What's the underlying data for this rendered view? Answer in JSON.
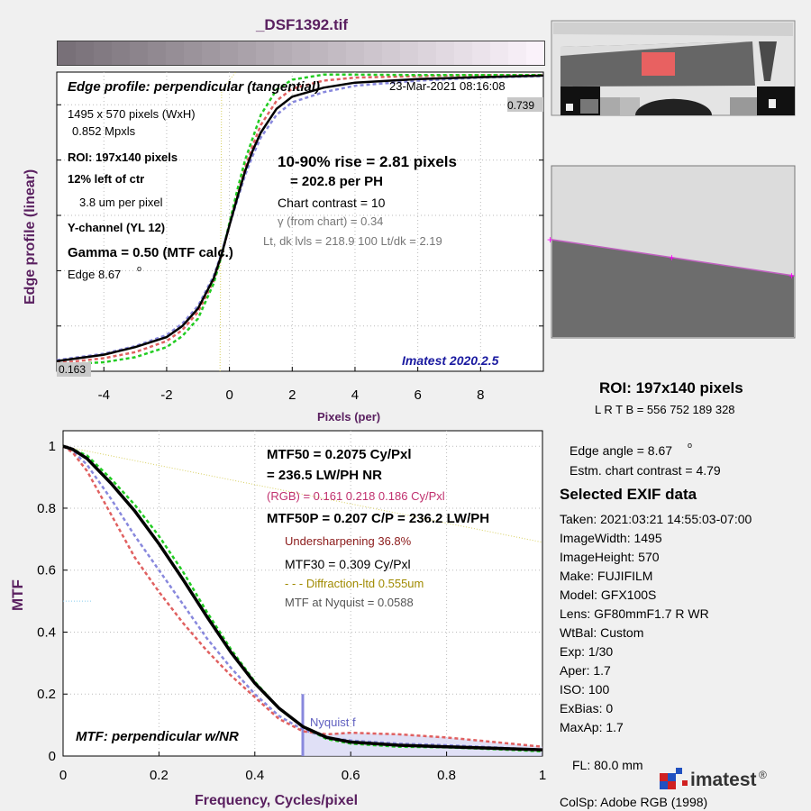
{
  "title": "_DSF1392.tif",
  "edge_panel": {
    "heading": "Edge profile: perpendicular (tangential)",
    "timestamp": "23-Mar-2021 08:16:08",
    "size": "1495 x 570 pixels (WxH)",
    "mpxls": "0.852 Mpxls",
    "roi": "ROI:  197x140 pixels",
    "position": "12% left of ctr",
    "pitch": "3.8 um per pixel",
    "channel": "Y-channel  (YL 12)",
    "gamma": "Gamma = 0.50 (MTF calc.)",
    "edge_label": "Edge   8.67",
    "edge_deg": "o",
    "rise": "10-90% rise = 2.81 pixels",
    "per_ph": "=  202.8 per PH",
    "contrast": "Chart contrast = 10",
    "gamma_chart": "γ (from chart) =  0.34",
    "levels": "Lt, dk lvls = 218.9  100  Lt/dk = 2.19",
    "version": "Imatest 2020.2.5",
    "top_value": "0.739",
    "bottom_value": "0.163"
  },
  "mtf_panel": {
    "mtf50": "MTF50 = 0.2075 Cy/Pxl",
    "mtf50_lw": "= 236.5 LW/PH  NR",
    "rgb": "(RGB) = 0.161  0.218  0.186 Cy/Pxl",
    "mtf50p": "MTF50P = 0.207 C/P = 236.2 LW/PH",
    "undersharp": "Undersharpening 36.8%",
    "mtf30": "MTF30 = 0.309 Cy/Pxl",
    "diffraction": "- - - Diffraction-ltd  0.555um",
    "nyquist_mtf": "MTF at Nyquist = 0.0588",
    "nyquist_label": "Nyquist f",
    "caption": "MTF: perpendicular w/NR"
  },
  "side": {
    "roi": "ROI:  197x140 pixels",
    "lrtb": "L R  T B = 556 752  189 328",
    "edge_angle": "Edge angle = 8.67",
    "edge_angle_deg": "o",
    "chart_contrast": "Estm. chart contrast = 4.79",
    "exif_title": "Selected EXIF data",
    "exif": [
      "Taken: 2021:03:21 14:55:03-07:00",
      "ImageWidth:  1495",
      "ImageHeight:  570",
      "Make:  FUJIFILM",
      "Model:  GFX100S",
      "Lens:   GF80mmF1.7 R WR",
      "WtBal:  Custom",
      "Exp:    1/30",
      "Aper:   1.7",
      "ISO:    100",
      "ExBias:  0",
      "MaxAp:  1.7"
    ],
    "fl": "FL:     80.0 mm",
    "colsp": "ColSp:  Adobe RGB (1998)",
    "logo_text": "imatest",
    "logo_reg": "®"
  },
  "chart_data": [
    {
      "type": "line",
      "xlabel": "Pixels (per)",
      "ylabel": "Edge profile (linear)",
      "xlim": [
        -5.5,
        10
      ],
      "xticks": [
        -4,
        -2,
        0,
        2,
        4,
        6,
        8
      ],
      "grid": true,
      "series": [
        {
          "x": [
            -5.5,
            -4,
            -3,
            -2,
            -1.5,
            -1,
            -0.5,
            -0.25,
            0,
            0.25,
            0.5,
            0.75,
            1,
            1.5,
            2,
            3,
            4,
            6,
            8,
            10
          ],
          "y": [
            0.166,
            0.176,
            0.188,
            0.21,
            0.232,
            0.268,
            0.33,
            0.38,
            0.44,
            0.5,
            0.555,
            0.6,
            0.64,
            0.688,
            0.712,
            0.728,
            0.734,
            0.737,
            0.739,
            0.739
          ]
        },
        {
          "x": [
            -5.5,
            -4,
            -3,
            -2,
            -1.5,
            -1,
            -0.5,
            -0.25,
            0,
            0.25,
            0.5,
            0.75,
            1,
            1.5,
            2,
            3,
            4,
            6,
            8,
            10
          ],
          "y": [
            0.163,
            0.168,
            0.178,
            0.198,
            0.22,
            0.255,
            0.325,
            0.38,
            0.445,
            0.51,
            0.57,
            0.615,
            0.66,
            0.71,
            0.73,
            0.74,
            0.74,
            0.739,
            0.739,
            0.739
          ]
        },
        {
          "x": [
            -5.5,
            -4,
            -3,
            -2,
            -1.5,
            -1,
            -0.5,
            -0.25,
            0,
            0.25,
            0.5,
            0.75,
            1,
            1.5,
            2,
            3,
            4,
            6,
            8,
            10
          ],
          "y": [
            0.172,
            0.185,
            0.2,
            0.222,
            0.245,
            0.28,
            0.34,
            0.385,
            0.44,
            0.49,
            0.54,
            0.58,
            0.615,
            0.66,
            0.685,
            0.705,
            0.718,
            0.728,
            0.734,
            0.737
          ]
        },
        {
          "x": [
            -5.5,
            -4,
            -3,
            -2,
            -1.5,
            -1,
            -0.5,
            -0.25,
            0,
            0.25,
            0.5,
            0.75,
            1,
            1.5,
            2,
            3,
            4,
            6,
            8,
            10
          ],
          "y": [
            0.17,
            0.183,
            0.198,
            0.218,
            0.24,
            0.275,
            0.335,
            0.382,
            0.44,
            0.495,
            0.548,
            0.59,
            0.625,
            0.672,
            0.696,
            0.714,
            0.724,
            0.731,
            0.735,
            0.738
          ]
        }
      ]
    },
    {
      "type": "line",
      "xlabel": "Frequency, Cycles/pixel",
      "ylabel": "MTF",
      "xlim": [
        0,
        1
      ],
      "ylim": [
        0,
        1.05
      ],
      "xticks": [
        0,
        0.2,
        0.4,
        0.6,
        0.8,
        1
      ],
      "yticks": [
        0,
        0.2,
        0.4,
        0.6,
        0.8,
        1
      ],
      "grid": true,
      "series": [
        {
          "x": [
            0,
            0.02,
            0.05,
            0.1,
            0.15,
            0.2,
            0.25,
            0.3,
            0.35,
            0.4,
            0.45,
            0.5,
            0.55,
            0.6,
            0.7,
            0.8,
            0.9,
            1.0
          ],
          "y": [
            1.0,
            0.99,
            0.96,
            0.88,
            0.79,
            0.685,
            0.57,
            0.45,
            0.335,
            0.235,
            0.155,
            0.095,
            0.06,
            0.045,
            0.035,
            0.03,
            0.025,
            0.02
          ]
        },
        {
          "x": [
            0,
            0.02,
            0.05,
            0.1,
            0.15,
            0.2,
            0.25,
            0.3,
            0.35,
            0.4,
            0.45,
            0.5,
            0.55,
            0.6,
            0.7,
            0.8,
            0.9,
            1.0
          ],
          "y": [
            1.0,
            0.99,
            0.97,
            0.895,
            0.81,
            0.71,
            0.595,
            0.465,
            0.345,
            0.24,
            0.155,
            0.095,
            0.055,
            0.04,
            0.03,
            0.028,
            0.022,
            0.015
          ]
        },
        {
          "x": [
            0,
            0.02,
            0.05,
            0.1,
            0.15,
            0.2,
            0.25,
            0.3,
            0.35,
            0.4,
            0.45,
            0.5,
            0.55,
            0.6,
            0.7,
            0.8,
            0.9,
            1.0
          ],
          "y": [
            1.0,
            0.98,
            0.92,
            0.78,
            0.64,
            0.53,
            0.43,
            0.34,
            0.26,
            0.19,
            0.12,
            0.08,
            0.07,
            0.075,
            0.07,
            0.06,
            0.045,
            0.03
          ]
        },
        {
          "x": [
            0,
            0.02,
            0.05,
            0.1,
            0.15,
            0.2,
            0.25,
            0.3,
            0.35,
            0.4,
            0.45,
            0.5,
            0.55,
            0.6,
            0.7,
            0.8,
            0.9,
            1.0
          ],
          "y": [
            1.0,
            0.985,
            0.94,
            0.83,
            0.71,
            0.6,
            0.49,
            0.38,
            0.285,
            0.2,
            0.13,
            0.085,
            0.06,
            0.05,
            0.04,
            0.035,
            0.028,
            0.02
          ]
        },
        {
          "x": [
            0,
            1.0
          ],
          "y": [
            1.0,
            0.69
          ]
        }
      ]
    }
  ],
  "colors": {
    "black": "#000000",
    "green": "#22cc22",
    "red": "#e06060",
    "blue": "#8888dd",
    "magenta": "#d060a0",
    "diffraction": "#d8d060",
    "nyquist": "#8888dd"
  }
}
